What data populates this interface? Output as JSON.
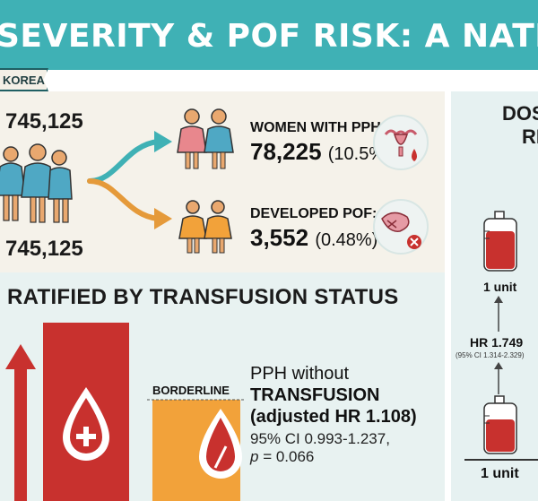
{
  "header": {
    "title": "SEVERITY & POF RISK: A NATIONWIDE",
    "tag": "KOREA"
  },
  "cohort": {
    "top_count": "745,125",
    "bottom_count": "745,125"
  },
  "outcomes": {
    "pph_label": "WOMEN WITH PPH:",
    "pph_count": "78,225",
    "pph_pct": "(10.5%)",
    "pof_label": "DEVELOPED POF:",
    "pof_count": "3,552",
    "pof_pct": "(0.48%)"
  },
  "stratified": {
    "title": "RATIFIED BY TRANSFUSION STATUS",
    "borderline": "BORDERLINE",
    "line1": "PPH without",
    "line2": "TRANSFUSION",
    "line3": "(adjusted HR 1.108)",
    "ci": "95% CI 0.993-1.237,",
    "p": "p = 0.066",
    "p_letter": "p",
    "p_rest": " = 0.066"
  },
  "dose": {
    "title_line1": "DOS",
    "title_line2": "RE",
    "unit_top": "1 unit",
    "hr": "HR 1.749",
    "ci": "(95% CI 1.314-2.329)",
    "unit_bottom": "1 unit"
  },
  "colors": {
    "teal": "#3fb1b5",
    "red": "#c8312e",
    "orange": "#f2a23a",
    "pink": "#e8878d",
    "blue_fig": "#4fa8c4"
  }
}
